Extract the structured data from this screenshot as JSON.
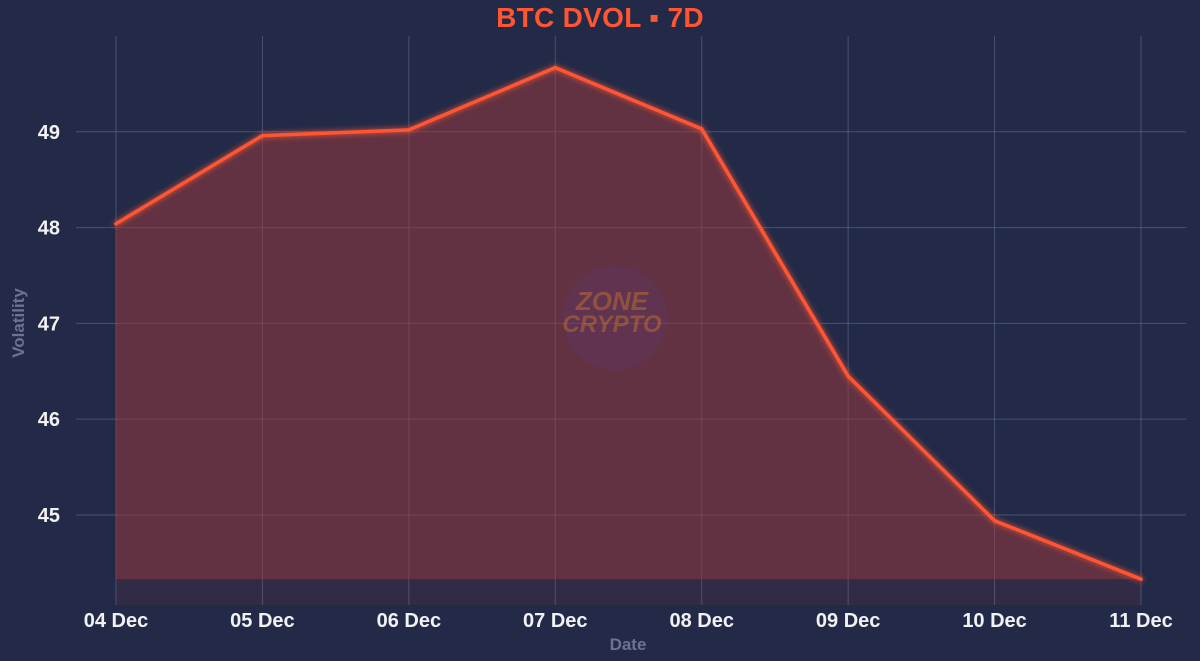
{
  "chart_data": {
    "type": "area",
    "title": "BTC DVOL ▪ 7D",
    "xlabel": "Date",
    "ylabel": "Volatility",
    "x": [
      "04 Dec",
      "05 Dec",
      "06 Dec",
      "07 Dec",
      "08 Dec",
      "09 Dec",
      "10 Dec",
      "11 Dec"
    ],
    "series": [
      {
        "values": [
          48.04,
          48.96,
          49.02,
          49.67,
          49.03,
          46.45,
          44.94,
          44.33
        ]
      }
    ],
    "yticks": [
      45,
      46,
      47,
      48,
      49
    ],
    "ylim": [
      44.06,
      50.0
    ],
    "grid": true,
    "legend": "none"
  },
  "watermark": {
    "line1": "ZONE",
    "line2": "CRYPTO"
  },
  "colors": {
    "background": "#222a48",
    "line": "#ff5533",
    "fill": "#a13a3c",
    "grid": "#6a7194",
    "tick_text": "#f2f2f5",
    "axis_label_text": "#6c7391",
    "title": "#ff5533"
  }
}
